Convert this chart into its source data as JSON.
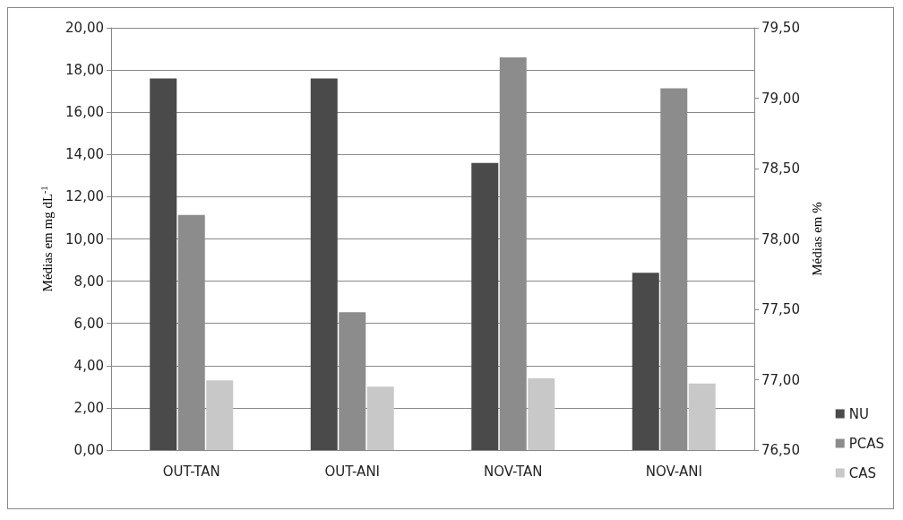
{
  "chart_data": {
    "type": "bar",
    "categories": [
      "OUT-TAN",
      "OUT-ANI",
      "NOV-TAN",
      "NOV-ANI"
    ],
    "ylabel": "Médias em mg dL$^{-1}$",
    "y2label": "Médias em %",
    "series": [
      {
        "name": "NU",
        "color": "#4a4a4a",
        "values": [
          17.6,
          17.6,
          13.6,
          8.4
        ]
      },
      {
        "name": "PCAS",
        "color": "#8c8c8c",
        "axis": "y2",
        "values": [
          78.17,
          77.48,
          79.29,
          79.07
        ]
      },
      {
        "name": "CAS",
        "color": "#c8c8c8",
        "values": [
          3.3,
          3.0,
          3.4,
          3.15
        ]
      }
    ],
    "ylim": [
      0,
      20
    ],
    "yticks": [
      {
        "value": 0,
        "label": "0,00"
      },
      {
        "value": 2,
        "label": "2,00"
      },
      {
        "value": 4,
        "label": "4,00"
      },
      {
        "value": 6,
        "label": "6,00"
      },
      {
        "value": 8,
        "label": "8,00"
      },
      {
        "value": 10,
        "label": "10,00"
      },
      {
        "value": 12,
        "label": "12,00"
      },
      {
        "value": 14,
        "label": "14,00"
      },
      {
        "value": 16,
        "label": "16,00"
      },
      {
        "value": 18,
        "label": "18,00"
      },
      {
        "value": 20,
        "label": "20,00"
      }
    ],
    "y2lim": [
      76.5,
      79.5
    ],
    "y2ticks": [
      {
        "value": 76.5,
        "label": "76,50"
      },
      {
        "value": 77,
        "label": "77,00"
      },
      {
        "value": 77.5,
        "label": "77,50"
      },
      {
        "value": 78,
        "label": "78,00"
      },
      {
        "value": 78.5,
        "label": "78,50"
      },
      {
        "value": 79,
        "label": "79,00"
      },
      {
        "value": 79.5,
        "label": "79,50"
      }
    ],
    "grid": "y",
    "legend": "right"
  }
}
